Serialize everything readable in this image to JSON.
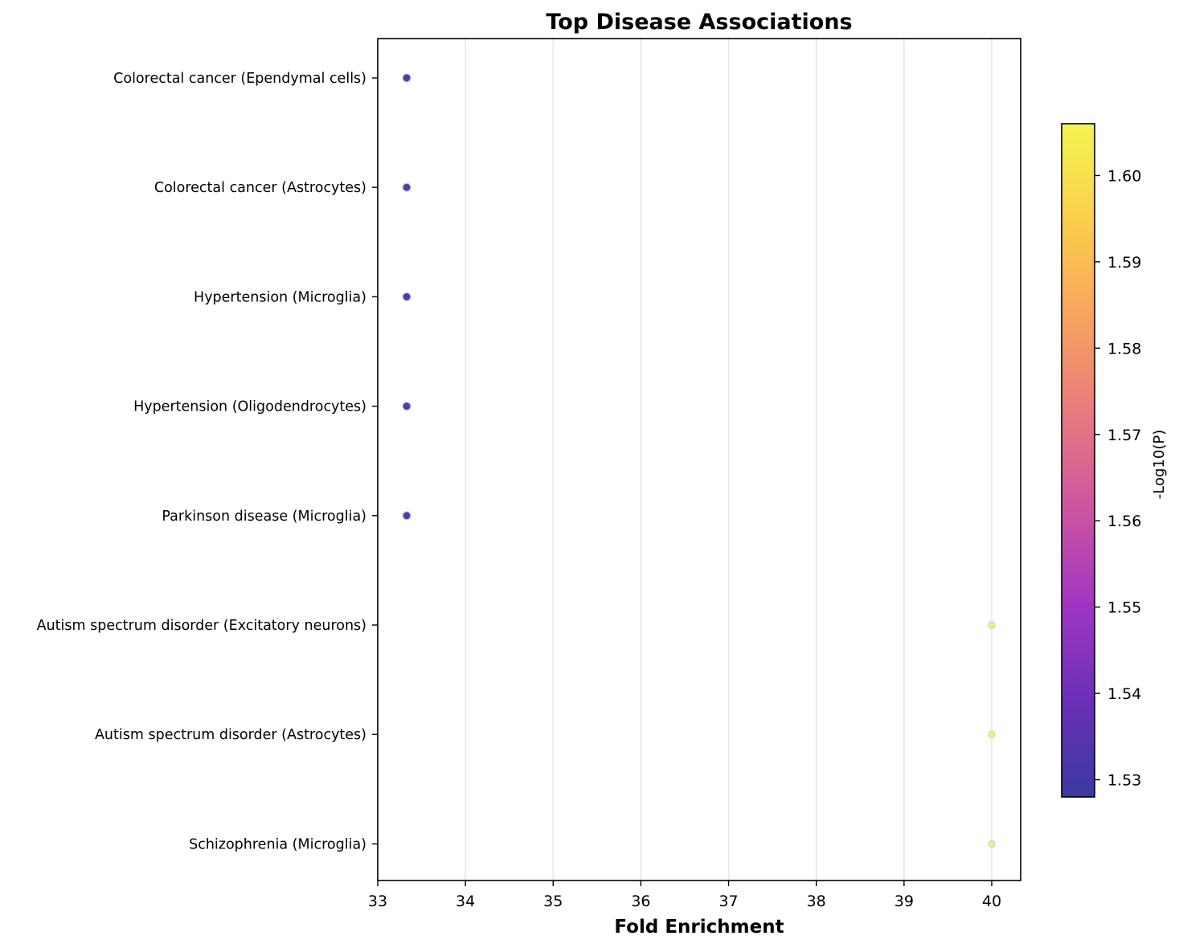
{
  "chart_data": {
    "type": "scatter",
    "title": "Top Disease Associations",
    "xlabel": "Fold Enrichment",
    "ylabel": "",
    "xlim": [
      33,
      40.33
    ],
    "x_ticks": [
      33,
      34,
      35,
      36,
      37,
      38,
      39,
      40
    ],
    "grid": "x-axis vertical lines",
    "categories": [
      "Colorectal cancer (Ependymal cells)",
      "Colorectal cancer (Astrocytes)",
      "Hypertension (Microglia)",
      "Hypertension (Oligodendrocytes)",
      "Parkinson disease (Microglia)",
      "Autism spectrum disorder (Excitatory neurons)",
      "Autism spectrum disorder (Astrocytes)",
      "Schizophrenia (Microglia)"
    ],
    "points": [
      {
        "category": "Colorectal cancer (Ependymal cells)",
        "x": 33.33,
        "neg_log10_p": 1.528
      },
      {
        "category": "Colorectal cancer (Astrocytes)",
        "x": 33.33,
        "neg_log10_p": 1.528
      },
      {
        "category": "Hypertension (Microglia)",
        "x": 33.33,
        "neg_log10_p": 1.528
      },
      {
        "category": "Hypertension (Oligodendrocytes)",
        "x": 33.33,
        "neg_log10_p": 1.528
      },
      {
        "category": "Parkinson disease (Microglia)",
        "x": 33.33,
        "neg_log10_p": 1.528
      },
      {
        "category": "Autism spectrum disorder (Excitatory neurons)",
        "x": 40.0,
        "neg_log10_p": 1.606
      },
      {
        "category": "Autism spectrum disorder (Astrocytes)",
        "x": 40.0,
        "neg_log10_p": 1.606
      },
      {
        "category": "Schizophrenia (Microglia)",
        "x": 40.0,
        "neg_log10_p": 1.606
      }
    ],
    "colorbar": {
      "label": "-Log10(P)",
      "range": [
        1.528,
        1.606
      ],
      "ticks": [
        "1.53",
        "1.54",
        "1.55",
        "1.56",
        "1.57",
        "1.58",
        "1.59",
        "1.60"
      ],
      "colormap": "plasma",
      "colors": [
        "#3a3a9f",
        "#6b2fb8",
        "#9f36c1",
        "#cc55a0",
        "#e87b7e",
        "#f8a45e",
        "#fbcf4c",
        "#f3f551"
      ]
    }
  }
}
